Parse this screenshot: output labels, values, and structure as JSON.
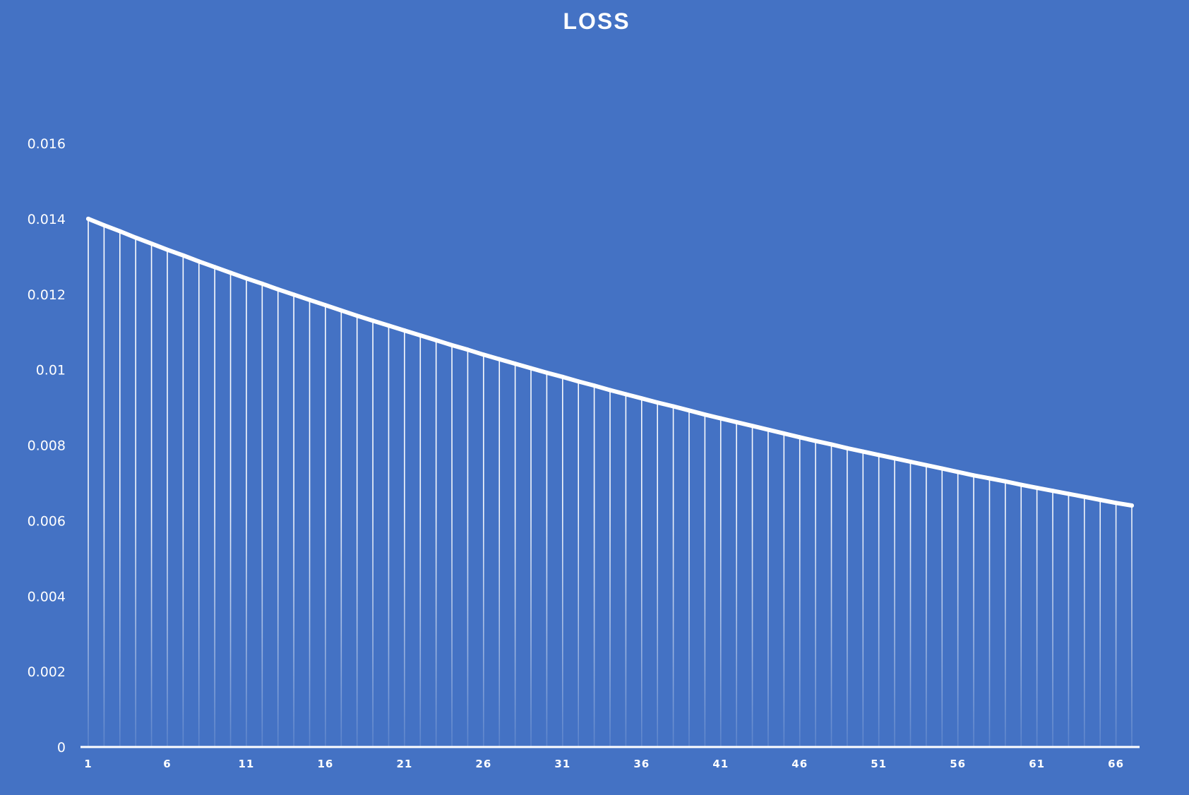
{
  "colors": {
    "background": "#4472C4",
    "line": "#FFFFFF",
    "drop_lines": "#FFFFFF",
    "text": "#FFFFFF"
  },
  "chart_data": {
    "type": "line",
    "title": "LOSS",
    "xlabel": "",
    "ylabel": "",
    "ylim": [
      0,
      0.016
    ],
    "y_ticks": [
      "0",
      "0.002",
      "0.004",
      "0.006",
      "0.008",
      "0.01",
      "0.012",
      "0.014",
      "0.016"
    ],
    "x_tick_labels": [
      "1",
      "6",
      "11",
      "16",
      "21",
      "26",
      "31",
      "36",
      "41",
      "46",
      "51",
      "56",
      "61",
      "66"
    ],
    "grid": false,
    "legend": "none",
    "drop_lines": true,
    "x": [
      1,
      2,
      3,
      4,
      5,
      6,
      7,
      8,
      9,
      10,
      11,
      12,
      13,
      14,
      15,
      16,
      17,
      18,
      19,
      20,
      21,
      22,
      23,
      24,
      25,
      26,
      27,
      28,
      29,
      30,
      31,
      32,
      33,
      34,
      35,
      36,
      37,
      38,
      39,
      40,
      41,
      42,
      43,
      44,
      45,
      46,
      47,
      48,
      49,
      50,
      51,
      52,
      53,
      54,
      55,
      56,
      57,
      58,
      59,
      60,
      61,
      62,
      63,
      64,
      65,
      66,
      67
    ],
    "series": [
      {
        "values": [
          0.014,
          0.01383,
          0.01367,
          0.0135,
          0.01334,
          0.01318,
          0.01303,
          0.01287,
          0.01272,
          0.01257,
          0.01242,
          0.01228,
          0.01213,
          0.01199,
          0.01185,
          0.01171,
          0.01157,
          0.01143,
          0.0113,
          0.01117,
          0.01104,
          0.01091,
          0.01078,
          0.01065,
          0.01053,
          0.0104,
          0.01028,
          0.01016,
          0.01004,
          0.00992,
          0.00981,
          0.00969,
          0.00958,
          0.00946,
          0.00935,
          0.00924,
          0.00913,
          0.00903,
          0.00892,
          0.00881,
          0.00871,
          0.00861,
          0.00851,
          0.00841,
          0.00831,
          0.00821,
          0.00811,
          0.00802,
          0.00792,
          0.00783,
          0.00774,
          0.00765,
          0.00756,
          0.00747,
          0.00738,
          0.00729,
          0.0072,
          0.00712,
          0.00704,
          0.00695,
          0.00687,
          0.00679,
          0.00671,
          0.00663,
          0.00655,
          0.00647,
          0.0064
        ]
      }
    ]
  }
}
